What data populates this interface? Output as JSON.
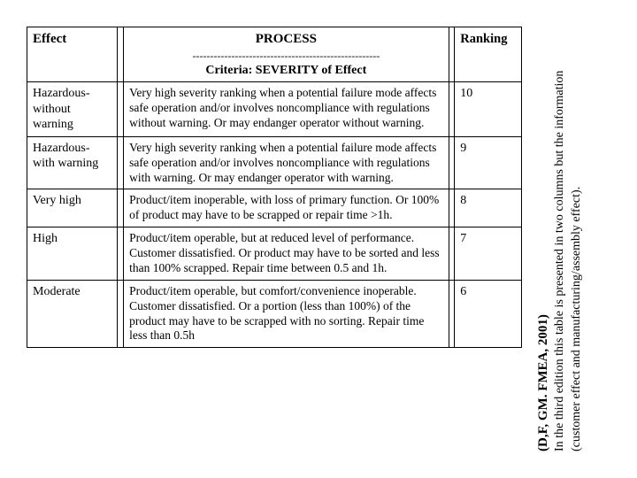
{
  "header": {
    "effect": "Effect",
    "process": "PROCESS",
    "dash": "-----------------------------------------------------",
    "criteria": "Criteria: SEVERITY of Effect",
    "ranking": "Ranking"
  },
  "rows": [
    {
      "effect": "Hazardous- without warning",
      "desc": " Very high severity ranking when a potential failure mode affects safe operation and/or involves noncompliance with regulations without warning. Or may endanger operator without warning.",
      "rank": "10"
    },
    {
      "effect": "Hazardous- with warning",
      "desc": " Very high severity ranking when a potential failure mode affects safe operation and/or involves noncompliance with regulations with warning. Or may endanger operator with warning.",
      "rank": "9"
    },
    {
      "effect": "Very high",
      "desc": " Product/item inoperable, with loss of primary function. Or 100% of product may have to be scrapped or repair time >1h.",
      "rank": "8"
    },
    {
      "effect": "High",
      "desc": " Product/item operable, but at reduced level of performance. Customer dissatisfied. Or product may have to be sorted and less than 100% scrapped. Repair time between 0.5 and 1h.",
      "rank": "7"
    },
    {
      "effect": "Moderate",
      "desc": "Product/item operable, but comfort/convenience inoperable. Customer dissatisfied. Or a portion (less than 100%) of the product may have to be scrapped with no sorting. Repair time less than 0.5h",
      "rank": "6"
    }
  ],
  "side": {
    "ref": "(D,F, GM. FMEA, 2001)",
    "note1": "In the third edition this table is presented in two columns but the information",
    "note2": "(customer effect and manufacturing/assembly effect)."
  }
}
